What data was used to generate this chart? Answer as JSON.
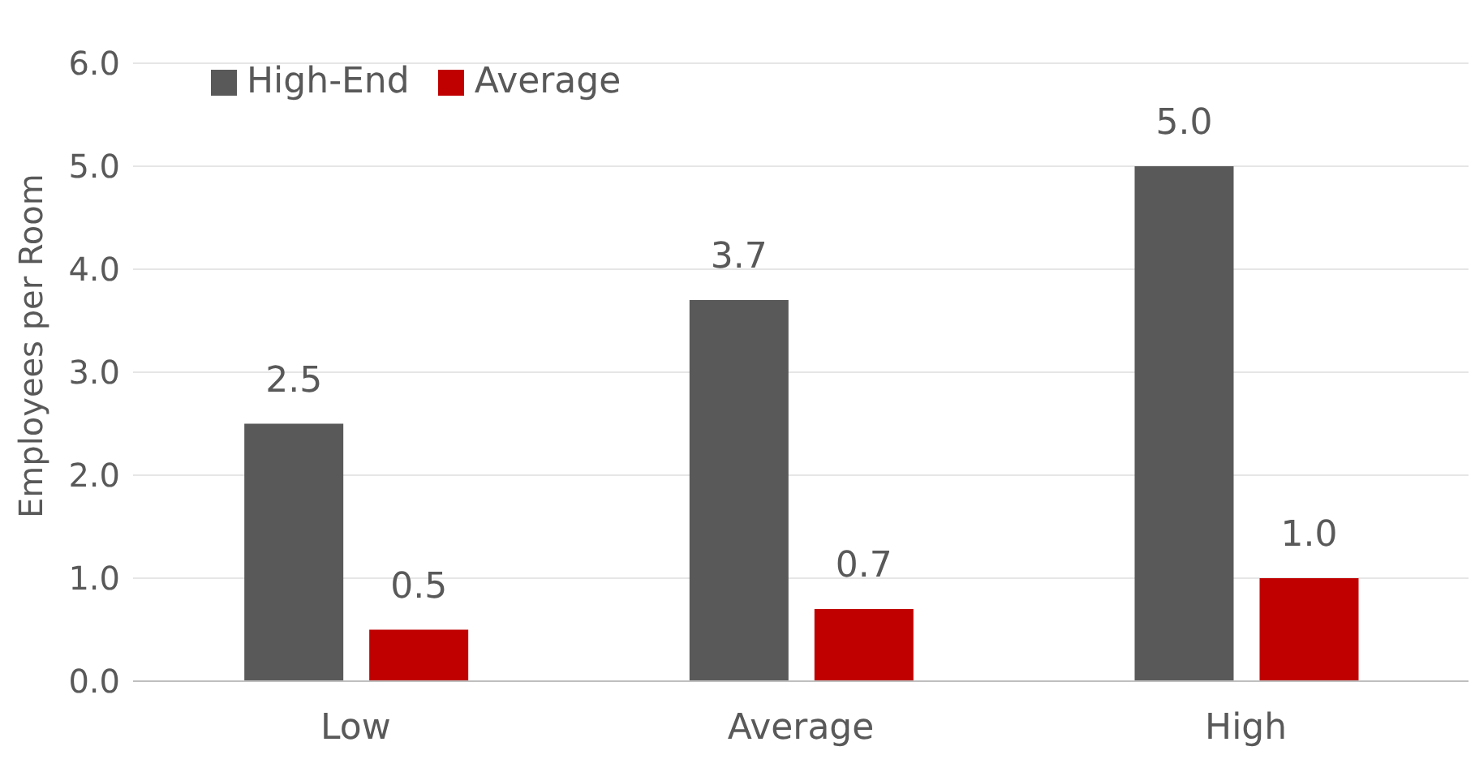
{
  "chart_data": {
    "type": "bar",
    "ylabel": "Employees per Room",
    "categories": [
      "Low",
      "Average",
      "High"
    ],
    "series": [
      {
        "name": "High-End",
        "color": "#595959",
        "values": [
          2.5,
          3.7,
          5.0
        ],
        "value_labels": [
          "2.5",
          "3.7",
          "5.0"
        ]
      },
      {
        "name": "Average",
        "color": "#c00000",
        "values": [
          0.5,
          0.7,
          1.0
        ],
        "value_labels": [
          "0.5",
          "0.7",
          "1.0"
        ]
      }
    ],
    "ylim": [
      0,
      6
    ],
    "yticks": [
      {
        "value": 0,
        "label": "0.0"
      },
      {
        "value": 1,
        "label": "1.0"
      },
      {
        "value": 2,
        "label": "2.0"
      },
      {
        "value": 3,
        "label": "3.0"
      },
      {
        "value": 4,
        "label": "4.0"
      },
      {
        "value": 5,
        "label": "5.0"
      },
      {
        "value": 6,
        "label": "6.0"
      }
    ],
    "grid": "y",
    "legend": "top left"
  }
}
